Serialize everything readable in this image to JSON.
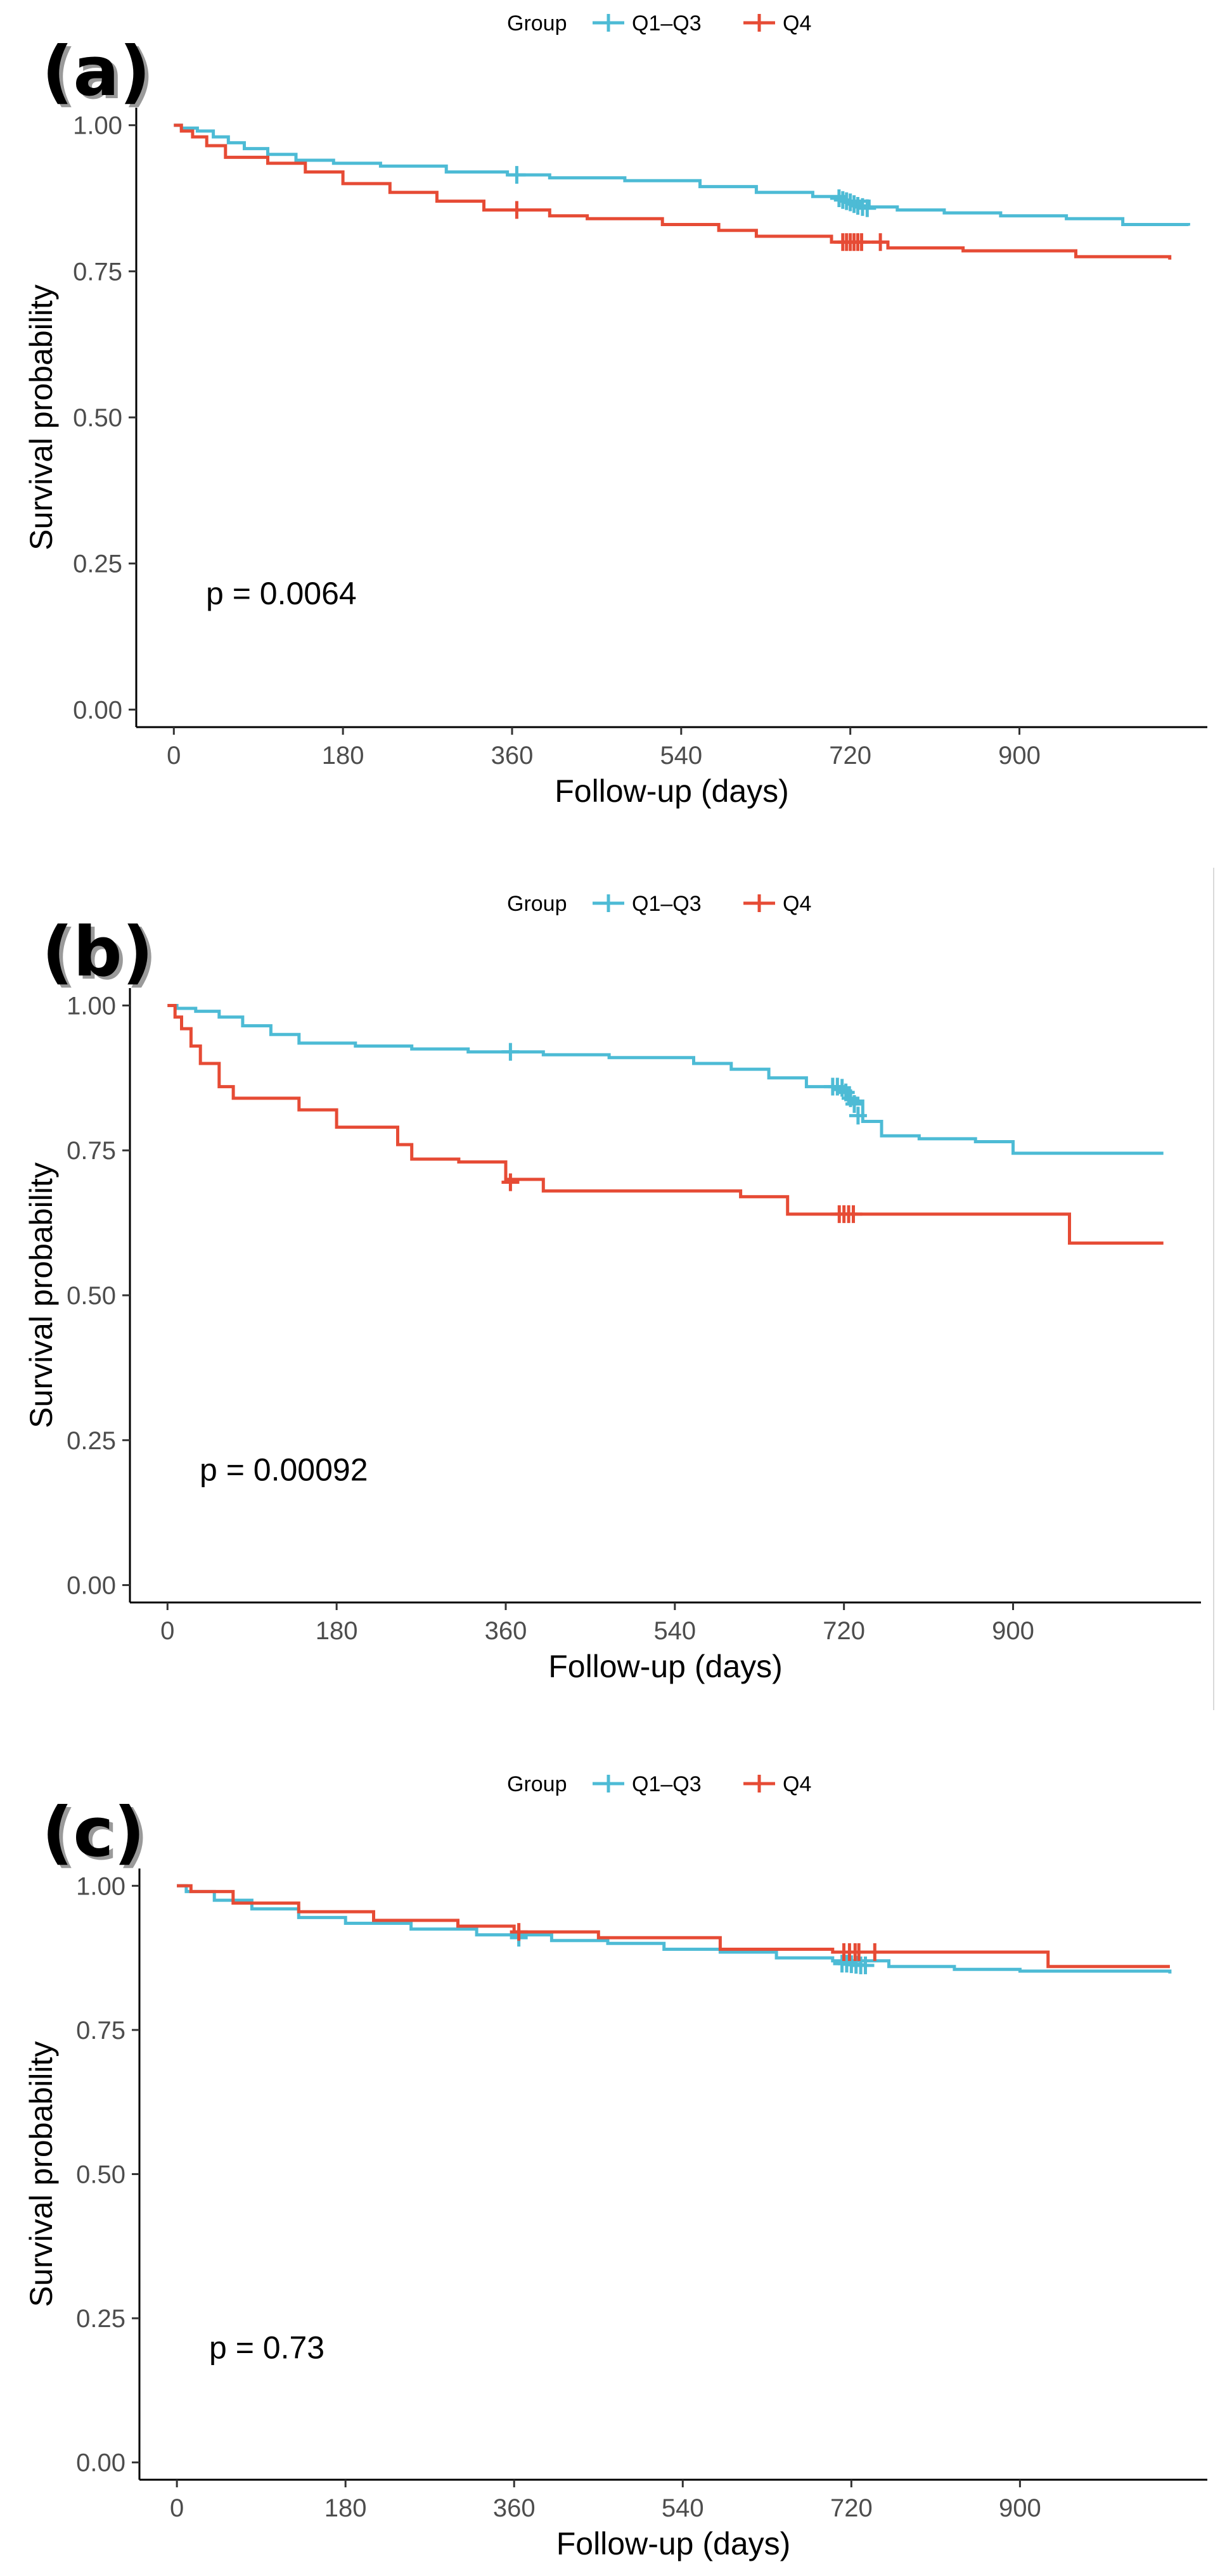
{
  "chart_data": [
    {
      "type": "line",
      "panel_label": "(a)",
      "xlabel": "Follow-up (days)",
      "ylabel": "Survival probability",
      "xlim": [
        -40,
        1100
      ],
      "ylim": [
        -0.03,
        1.03
      ],
      "xticks": [
        "0",
        "180",
        "360",
        "540",
        "720",
        "900"
      ],
      "yticks": [
        "0.00",
        "0.25",
        "0.50",
        "0.75",
        "1.00"
      ],
      "legend": {
        "title": "Group",
        "position": "top",
        "items": [
          "Q1–Q3",
          "Q4"
        ]
      },
      "annotation": "p = 0.0064",
      "grid": false,
      "series": [
        {
          "name": "Q1–Q3",
          "color": "#4DBBD5",
          "x": [
            0,
            8,
            25,
            42,
            58,
            75,
            100,
            130,
            170,
            220,
            290,
            355,
            400,
            480,
            560,
            620,
            680,
            715,
            740,
            770,
            820,
            880,
            950,
            1010,
            1080
          ],
          "y": [
            1.0,
            0.995,
            0.99,
            0.98,
            0.97,
            0.96,
            0.95,
            0.94,
            0.935,
            0.93,
            0.92,
            0.915,
            0.91,
            0.905,
            0.895,
            0.885,
            0.878,
            0.87,
            0.86,
            0.855,
            0.85,
            0.845,
            0.84,
            0.83,
            0.828
          ],
          "censor_x": [
            365,
            708,
            712,
            716,
            720,
            724,
            728,
            733,
            738
          ],
          "censor_y": [
            0.915,
            0.875,
            0.872,
            0.87,
            0.868,
            0.865,
            0.862,
            0.86,
            0.858
          ]
        },
        {
          "name": "Q4",
          "color": "#E64B35",
          "x": [
            0,
            8,
            20,
            35,
            55,
            100,
            140,
            180,
            230,
            280,
            330,
            400,
            440,
            520,
            580,
            620,
            700,
            760,
            840,
            900,
            960,
            1060
          ],
          "y": [
            1.0,
            0.99,
            0.98,
            0.965,
            0.945,
            0.935,
            0.92,
            0.9,
            0.885,
            0.87,
            0.855,
            0.845,
            0.84,
            0.83,
            0.82,
            0.81,
            0.8,
            0.79,
            0.785,
            0.785,
            0.775,
            0.77
          ],
          "censor_x": [
            365,
            712,
            716,
            720,
            724,
            728,
            732,
            752
          ],
          "censor_y": [
            0.855,
            0.8,
            0.8,
            0.8,
            0.8,
            0.8,
            0.8,
            0.8
          ]
        }
      ]
    },
    {
      "type": "line",
      "panel_label": "(b)",
      "xlabel": "Follow-up (days)",
      "ylabel": "Survival probability",
      "xlim": [
        -40,
        1100
      ],
      "ylim": [
        -0.03,
        1.03
      ],
      "xticks": [
        "0",
        "180",
        "360",
        "540",
        "720",
        "900"
      ],
      "yticks": [
        "0.00",
        "0.25",
        "0.50",
        "0.75",
        "1.00"
      ],
      "legend": {
        "title": "Group",
        "position": "top",
        "items": [
          "Q1–Q3",
          "Q4"
        ]
      },
      "annotation": "p = 0.00092",
      "grid": false,
      "series": [
        {
          "name": "Q1–Q3",
          "color": "#4DBBD5",
          "x": [
            0,
            10,
            30,
            55,
            80,
            110,
            140,
            200,
            260,
            320,
            400,
            470,
            560,
            600,
            640,
            680,
            710,
            725,
            740,
            760,
            800,
            860,
            900,
            1060
          ],
          "y": [
            1.0,
            0.995,
            0.99,
            0.98,
            0.965,
            0.95,
            0.935,
            0.93,
            0.925,
            0.92,
            0.915,
            0.91,
            0.9,
            0.89,
            0.875,
            0.86,
            0.855,
            0.835,
            0.8,
            0.775,
            0.77,
            0.765,
            0.745,
            0.745
          ],
          "censor_x": [
            365,
            708,
            713,
            718,
            722,
            727,
            731,
            735
          ],
          "censor_y": [
            0.92,
            0.86,
            0.86,
            0.858,
            0.85,
            0.84,
            0.83,
            0.81
          ]
        },
        {
          "name": "Q4",
          "color": "#E64B35",
          "x": [
            0,
            8,
            15,
            25,
            35,
            55,
            70,
            100,
            140,
            180,
            245,
            260,
            310,
            360,
            400,
            500,
            610,
            660,
            730,
            960,
            1060
          ],
          "y": [
            1.0,
            0.98,
            0.96,
            0.93,
            0.9,
            0.86,
            0.84,
            0.84,
            0.82,
            0.79,
            0.76,
            0.735,
            0.73,
            0.7,
            0.68,
            0.68,
            0.67,
            0.64,
            0.64,
            0.59,
            0.59
          ],
          "censor_x": [
            365,
            715,
            720,
            725,
            730
          ],
          "censor_y": [
            0.695,
            0.64,
            0.64,
            0.64,
            0.64
          ]
        }
      ]
    },
    {
      "type": "line",
      "panel_label": "(c)",
      "xlabel": "Follow-up (days)",
      "ylabel": "Survival probability",
      "xlim": [
        -40,
        1100
      ],
      "ylim": [
        -0.03,
        1.03
      ],
      "xticks": [
        "0",
        "180",
        "360",
        "540",
        "720",
        "900"
      ],
      "yticks": [
        "0.00",
        "0.25",
        "0.50",
        "0.75",
        "1.00"
      ],
      "legend": {
        "title": "Group",
        "position": "top",
        "items": [
          "Q1–Q3",
          "Q4"
        ]
      },
      "annotation": "p = 0.73",
      "grid": false,
      "series": [
        {
          "name": "Q1–Q3",
          "color": "#4DBBD5",
          "x": [
            0,
            10,
            40,
            80,
            130,
            180,
            250,
            320,
            400,
            460,
            520,
            580,
            640,
            700,
            760,
            830,
            900,
            1060
          ],
          "y": [
            1.0,
            0.99,
            0.975,
            0.96,
            0.945,
            0.935,
            0.925,
            0.915,
            0.905,
            0.9,
            0.89,
            0.885,
            0.875,
            0.87,
            0.86,
            0.855,
            0.852,
            0.848
          ],
          "censor_x": [
            365,
            710,
            715,
            720,
            725,
            730,
            735
          ],
          "censor_y": [
            0.91,
            0.865,
            0.865,
            0.864,
            0.863,
            0.862,
            0.862
          ]
        },
        {
          "name": "Q4",
          "color": "#E64B35",
          "x": [
            0,
            15,
            60,
            130,
            210,
            300,
            360,
            450,
            580,
            700,
            780,
            930,
            1060
          ],
          "y": [
            1.0,
            0.99,
            0.97,
            0.955,
            0.94,
            0.93,
            0.92,
            0.91,
            0.89,
            0.885,
            0.885,
            0.86,
            0.86
          ],
          "censor_x": [
            365,
            712,
            718,
            724,
            728,
            745
          ],
          "censor_y": [
            0.92,
            0.885,
            0.885,
            0.885,
            0.885,
            0.885
          ]
        }
      ]
    }
  ]
}
